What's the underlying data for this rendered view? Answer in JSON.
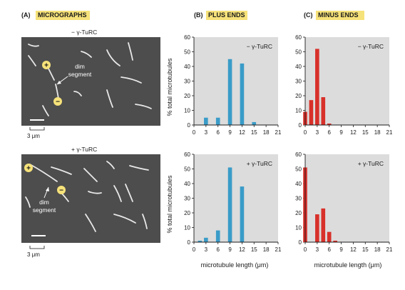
{
  "panels": {
    "a": {
      "letter": "(A)",
      "title": "MICROGRAPHS"
    },
    "b": {
      "letter": "(B)",
      "title": "PLUS ENDS"
    },
    "c": {
      "letter": "(C)",
      "title": "MINUS ENDS"
    }
  },
  "micrographs": {
    "top": {
      "condition": "− γ-TuRC",
      "annotation": [
        "dim",
        "segment"
      ],
      "plus": "+",
      "minus": "−",
      "scale": "3 μm"
    },
    "bottom": {
      "condition": "+ γ-TuRC",
      "annotation": [
        "dim",
        "segment"
      ],
      "plus": "+",
      "minus": "−",
      "scale": "3 μm"
    }
  },
  "colors": {
    "plus_bar": "#3a9cc8",
    "minus_bar": "#d8302a",
    "plot_bg": "#dcdcdc",
    "highlight": "#f6e27a",
    "micrograph_bg": "#4d4d4d"
  },
  "shared": {
    "ylabel": "% total microtubules",
    "xlabel": "microtubule length (μm)",
    "xticks": [
      "0",
      "3",
      "6",
      "9",
      "12",
      "15",
      "18",
      "21"
    ],
    "yticks": [
      "0",
      "10",
      "20",
      "30",
      "40",
      "50",
      "60"
    ]
  },
  "chart_data": [
    {
      "type": "bar",
      "panel": "B",
      "condition": "− γ-TuRC",
      "x": [
        3,
        6,
        9,
        12,
        15
      ],
      "values": [
        5,
        5,
        45,
        42,
        2
      ],
      "xlim": [
        0,
        21
      ],
      "ylim": [
        0,
        60
      ],
      "color": "#3a9cc8",
      "grid": false
    },
    {
      "type": "bar",
      "panel": "C",
      "condition": "− γ-TuRC",
      "x": [
        0,
        1.5,
        3,
        4.5,
        6,
        7.5
      ],
      "values": [
        9,
        17,
        52,
        19,
        1,
        0
      ],
      "xlim": [
        0,
        21
      ],
      "ylim": [
        0,
        60
      ],
      "color": "#d8302a",
      "grid": false
    },
    {
      "type": "bar",
      "panel": "B",
      "condition": "+ γ-TuRC",
      "x": [
        1.5,
        3,
        6,
        9,
        12
      ],
      "values": [
        1,
        3,
        8,
        51,
        38
      ],
      "xlim": [
        0,
        21
      ],
      "ylim": [
        0,
        60
      ],
      "color": "#3a9cc8",
      "grid": false
    },
    {
      "type": "bar",
      "panel": "C",
      "condition": "+ γ-TuRC",
      "x": [
        0,
        3,
        4.5,
        6,
        7.5
      ],
      "values": [
        51,
        19,
        23,
        7,
        1
      ],
      "xlim": [
        0,
        21
      ],
      "ylim": [
        0,
        60
      ],
      "color": "#d8302a",
      "grid": false
    }
  ]
}
